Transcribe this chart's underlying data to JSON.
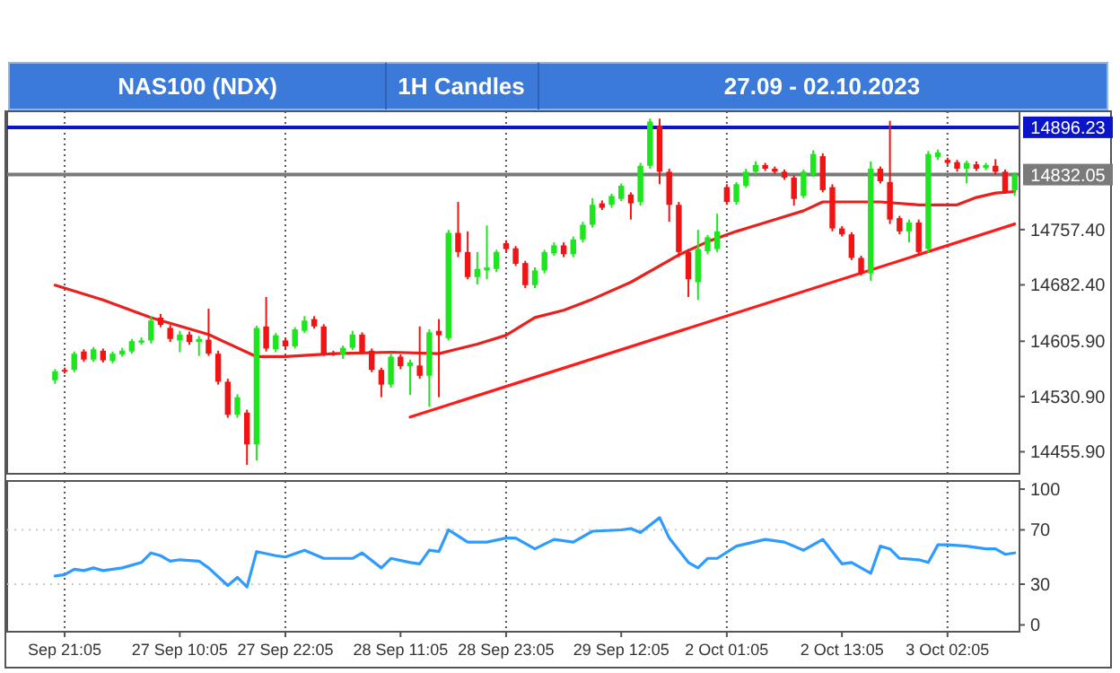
{
  "chart_data": [
    {
      "type": "candlestick",
      "title": "NAS100 (NDX)",
      "subtitle": "1H Candles",
      "annotations": [
        "27.09 - 02.10.2023"
      ],
      "categories": [
        null,
        null,
        null,
        null,
        null,
        null,
        null,
        null,
        null,
        null,
        null,
        null,
        null,
        null,
        null,
        null,
        null,
        null,
        null,
        null,
        null,
        null,
        null,
        null,
        null,
        null,
        null,
        null,
        null,
        null,
        null,
        null,
        null,
        null,
        null,
        null,
        null,
        null,
        null,
        null,
        null,
        null,
        null,
        null,
        null,
        null,
        null,
        null,
        null,
        null,
        null,
        null,
        null,
        null,
        null,
        null,
        null,
        null,
        null,
        null,
        null,
        null,
        null,
        null,
        null,
        null,
        null,
        null,
        null,
        null,
        null,
        null,
        null,
        null,
        null,
        null,
        null,
        null,
        null,
        null,
        null,
        null,
        null,
        null,
        null,
        null,
        null,
        null,
        null,
        null,
        null,
        null,
        null,
        null,
        null,
        null,
        null,
        null,
        null,
        null,
        null
      ],
      "ohlc": [
        [
          14553,
          14568,
          14548,
          14565
        ],
        [
          14567,
          14570,
          14562,
          14565
        ],
        [
          14567,
          14592,
          14564,
          14589
        ],
        [
          14592,
          14595,
          14578,
          14581
        ],
        [
          14581,
          14598,
          14578,
          14595
        ],
        [
          14593,
          14596,
          14577,
          14580
        ],
        [
          14579,
          14592,
          14576,
          14589
        ],
        [
          14588,
          14597,
          14585,
          14593
        ],
        [
          14592,
          14609,
          14589,
          14606
        ],
        [
          14604,
          14611,
          14601,
          14607
        ],
        [
          14607,
          14640,
          14603,
          14634
        ],
        [
          14638,
          14643,
          14625,
          14628
        ],
        [
          14624,
          14628,
          14605,
          14609
        ],
        [
          14607,
          14620,
          14591,
          14615
        ],
        [
          14615,
          14619,
          14601,
          14605
        ],
        [
          14605,
          14613,
          14586,
          14609
        ],
        [
          14608,
          14650,
          14586,
          14589
        ],
        [
          14589,
          14593,
          14547,
          14551
        ],
        [
          14551,
          14555,
          14502,
          14506
        ],
        [
          14506,
          14534,
          14502,
          14530
        ],
        [
          14509,
          14513,
          14438,
          14466
        ],
        [
          14466,
          14627,
          14444,
          14624
        ],
        [
          14626,
          14666,
          14592,
          14596
        ],
        [
          14595,
          14617,
          14591,
          14614
        ],
        [
          14607,
          14611,
          14595,
          14599
        ],
        [
          14599,
          14625,
          14596,
          14622
        ],
        [
          14620,
          14640,
          14617,
          14634
        ],
        [
          14636,
          14640,
          14623,
          14626
        ],
        [
          14626,
          14629,
          14586,
          14589
        ],
        [
          14590,
          14593,
          14586,
          14589
        ],
        [
          14588,
          14600,
          14582,
          14597
        ],
        [
          14597,
          14620,
          14594,
          14615
        ],
        [
          14615,
          14618,
          14588,
          14591
        ],
        [
          14593,
          14596,
          14564,
          14567
        ],
        [
          14567,
          14570,
          14530,
          14547
        ],
        [
          14547,
          14590,
          14543,
          14585
        ],
        [
          14585,
          14588,
          14568,
          14572
        ],
        [
          14572,
          14581,
          14533,
          14577
        ],
        [
          14573,
          14626,
          14555,
          14559
        ],
        [
          14559,
          14622,
          14517,
          14618
        ],
        [
          14620,
          14636,
          14530,
          14614
        ],
        [
          14610,
          14757,
          14607,
          14753
        ],
        [
          14753,
          14795,
          14720,
          14727
        ],
        [
          14727,
          14755,
          14690,
          14693
        ],
        [
          14693,
          14727,
          14683,
          14704
        ],
        [
          14702,
          14763,
          14690,
          14706
        ],
        [
          14704,
          14730,
          14700,
          14727
        ],
        [
          14739,
          14743,
          14727,
          14731
        ],
        [
          14732,
          14735,
          14708,
          14711
        ],
        [
          14712,
          14715,
          14678,
          14682
        ],
        [
          14682,
          14706,
          14678,
          14702
        ],
        [
          14702,
          14730,
          14698,
          14727
        ],
        [
          14725,
          14740,
          14722,
          14736
        ],
        [
          14736,
          14740,
          14720,
          14724
        ],
        [
          14724,
          14748,
          14720,
          14744
        ],
        [
          14744,
          14768,
          14740,
          14764
        ],
        [
          14764,
          14800,
          14760,
          14791
        ],
        [
          14793,
          14797,
          14784,
          14787
        ],
        [
          14791,
          14806,
          14787,
          14803
        ],
        [
          14799,
          14820,
          14796,
          14817
        ],
        [
          14805,
          14808,
          14771,
          14793
        ],
        [
          14795,
          14848,
          14790,
          14844
        ],
        [
          14844,
          14908,
          14840,
          14904
        ],
        [
          14898,
          14908,
          14819,
          14836
        ],
        [
          14836,
          14840,
          14768,
          14791
        ],
        [
          14791,
          14795,
          14720,
          14727
        ],
        [
          14727,
          14731,
          14666,
          14690
        ],
        [
          14686,
          14757,
          14662,
          14731
        ],
        [
          14728,
          14750,
          14724,
          14747
        ],
        [
          14731,
          14779,
          14727,
          14755
        ],
        [
          14815,
          14819,
          14791,
          14795
        ],
        [
          14795,
          14822,
          14791,
          14819
        ],
        [
          14817,
          14840,
          14814,
          14836
        ],
        [
          14836,
          14850,
          14832,
          14845
        ],
        [
          14845,
          14848,
          14837,
          14840
        ],
        [
          14840,
          14843,
          14833,
          14836
        ],
        [
          14836,
          14839,
          14825,
          14828
        ],
        [
          14828,
          14831,
          14790,
          14799
        ],
        [
          14803,
          14839,
          14800,
          14836
        ],
        [
          14832,
          14865,
          14829,
          14860
        ],
        [
          14857,
          14861,
          14808,
          14811
        ],
        [
          14815,
          14819,
          14755,
          14759
        ],
        [
          14759,
          14762,
          14748,
          14751
        ],
        [
          14751,
          14754,
          14716,
          14719
        ],
        [
          14719,
          14722,
          14695,
          14698
        ],
        [
          14698,
          14850,
          14688,
          14840
        ],
        [
          14840,
          14843,
          14820,
          14823
        ],
        [
          14822,
          14905,
          14765,
          14771
        ],
        [
          14773,
          14776,
          14751,
          14755
        ],
        [
          14755,
          14771,
          14740,
          14767
        ],
        [
          14767,
          14771,
          14722,
          14727
        ],
        [
          14731,
          14864,
          14726,
          14860
        ],
        [
          14856,
          14866,
          14852,
          14862
        ],
        [
          14852,
          14855,
          14845,
          14848
        ],
        [
          14849,
          14852,
          14836,
          14840
        ],
        [
          14840,
          14851,
          14820,
          14848
        ],
        [
          14846,
          14850,
          14837,
          14840
        ],
        [
          14841,
          14848,
          14838,
          14845
        ],
        [
          14844,
          14853,
          14832,
          14836
        ],
        [
          14836,
          14839,
          14806,
          14809
        ],
        [
          14811,
          14835,
          14803,
          14832
        ]
      ],
      "colors": [
        "#1ee61e",
        "#f01414",
        "#1ee61e",
        "#f01414",
        "#1ee61e",
        "#f01414",
        "#1ee61e",
        "#1ee61e",
        "#1ee61e",
        "#1ee61e",
        "#1ee61e",
        "#f01414",
        "#f01414",
        "#1ee61e",
        "#f01414",
        "#1ee61e",
        "#f01414",
        "#f01414",
        "#f01414",
        "#1ee61e",
        "#f01414",
        "#1ee61e",
        "#f01414",
        "#1ee61e",
        "#f01414",
        "#1ee61e",
        "#1ee61e",
        "#f01414",
        "#f01414",
        "#f01414",
        "#1ee61e",
        "#1ee61e",
        "#f01414",
        "#f01414",
        "#f01414",
        "#1ee61e",
        "#f01414",
        "#1ee61e",
        "#f01414",
        "#1ee61e",
        "#f01414",
        "#1ee61e",
        "#f01414",
        "#f01414",
        "#1ee61e",
        "#1ee61e",
        "#1ee61e",
        "#f01414",
        "#f01414",
        "#f01414",
        "#1ee61e",
        "#1ee61e",
        "#1ee61e",
        "#f01414",
        "#1ee61e",
        "#1ee61e",
        "#1ee61e",
        "#f01414",
        "#1ee61e",
        "#1ee61e",
        "#f01414",
        "#1ee61e",
        "#1ee61e",
        "#f01414",
        "#f01414",
        "#f01414",
        "#f01414",
        "#1ee61e",
        "#1ee61e",
        "#1ee61e",
        "#f01414",
        "#1ee61e",
        "#1ee61e",
        "#1ee61e",
        "#f01414",
        "#f01414",
        "#f01414",
        "#f01414",
        "#1ee61e",
        "#1ee61e",
        "#f01414",
        "#f01414",
        "#f01414",
        "#f01414",
        "#f01414",
        "#1ee61e",
        "#f01414",
        "#f01414",
        "#f01414",
        "#1ee61e",
        "#f01414",
        "#1ee61e",
        "#1ee61e",
        "#f01414",
        "#f01414",
        "#1ee61e",
        "#f01414",
        "#1ee61e",
        "#f01414",
        "#f01414",
        "#1ee61e"
      ],
      "series": [
        {
          "type": "line",
          "color": "#e8201e",
          "values": [
            14682,
            null,
            null,
            null,
            null,
            14662,
            null,
            null,
            null,
            null,
            14638,
            null,
            null,
            null,
            null,
            null,
            14615,
            null,
            null,
            null,
            null,
            14585,
            null,
            null,
            14585,
            null,
            null,
            null,
            null,
            14589,
            null,
            null,
            null,
            null,
            null,
            14591,
            null,
            null,
            null,
            null,
            14589,
            null,
            null,
            null,
            14602,
            null,
            null,
            14614,
            null,
            null,
            14638,
            null,
            null,
            14648,
            null,
            null,
            14663,
            null,
            null,
            null,
            14686,
            null,
            null,
            null,
            null,
            14723,
            null,
            null,
            14741,
            null,
            null,
            14755,
            null,
            null,
            null,
            14771,
            null,
            null,
            14783,
            null,
            14795,
            null,
            null,
            null,
            null,
            null,
            14795,
            null,
            null,
            null,
            14791,
            null,
            null,
            null,
            14791,
            null,
            14801,
            null,
            14807,
            null,
            14809
          ]
        },
        {
          "type": "line",
          "color": "#ff1a1a",
          "values": [
            null,
            null,
            null,
            null,
            null,
            null,
            null,
            null,
            null,
            null,
            null,
            null,
            null,
            null,
            null,
            null,
            null,
            null,
            null,
            null,
            null,
            null,
            null,
            null,
            null,
            null,
            null,
            null,
            null,
            null,
            null,
            null,
            null,
            null,
            null,
            null,
            null,
            14503,
            null,
            null,
            null,
            null,
            null,
            null,
            null,
            null,
            null,
            null,
            null,
            null,
            null,
            null,
            null,
            null,
            null,
            null,
            null,
            null,
            null,
            null,
            null,
            null,
            null,
            null,
            null,
            null,
            null,
            null,
            null,
            null,
            null,
            null,
            null,
            null,
            null,
            null,
            null,
            null,
            null,
            null,
            null,
            null,
            null,
            null,
            null,
            null,
            null,
            null,
            null,
            null,
            null,
            null,
            null,
            null,
            null,
            null,
            null,
            null,
            null,
            null,
            14765
          ]
        }
      ],
      "ylim": [
        14426,
        14918
      ],
      "yticks": [
        {
          "value": 14455.9,
          "label": "14455.90"
        },
        {
          "value": 14530.9,
          "label": "14530.90"
        },
        {
          "value": 14605.9,
          "label": "14605.90"
        },
        {
          "value": 14682.4,
          "label": "14682.40"
        },
        {
          "value": 14757.4,
          "label": "14757.40"
        }
      ],
      "ref_lines": [
        {
          "axis": "y",
          "value": 14896.23,
          "label": "14896.23",
          "color": "#0a14c8"
        },
        {
          "axis": "y",
          "value": 14832.05,
          "label": "14832.05",
          "color": "#7a7a7a"
        }
      ],
      "grid": "x",
      "tick_labels": "y"
    },
    {
      "type": "line",
      "categories": [
        null,
        "Sep 21:05",
        null,
        null,
        null,
        null,
        null,
        null,
        null,
        null,
        null,
        null,
        null,
        "27 Sep 10:05",
        null,
        null,
        null,
        null,
        null,
        null,
        null,
        null,
        null,
        null,
        "27 Sep 22:05",
        null,
        null,
        null,
        null,
        null,
        null,
        null,
        null,
        null,
        null,
        null,
        "28 Sep 11:05",
        null,
        null,
        null,
        null,
        null,
        null,
        null,
        null,
        null,
        null,
        "28 Sep 23:05",
        null,
        null,
        null,
        null,
        null,
        null,
        null,
        null,
        null,
        null,
        null,
        "29 Sep 12:05",
        null,
        null,
        null,
        null,
        null,
        null,
        null,
        null,
        null,
        null,
        "2 Oct 01:05",
        null,
        null,
        null,
        null,
        null,
        null,
        null,
        null,
        null,
        null,
        null,
        "2 Oct 13:05",
        null,
        null,
        null,
        null,
        null,
        null,
        null,
        null,
        null,
        null,
        "3 Oct 02:05",
        null,
        null,
        null,
        null,
        null,
        null,
        null
      ],
      "series": [
        {
          "color": "#2f9bff",
          "values": [
            36,
            37,
            41,
            40,
            42,
            40,
            null,
            42,
            null,
            46,
            53,
            51,
            47,
            48,
            null,
            47,
            42,
            null,
            29,
            35,
            28,
            54,
            null,
            51,
            50,
            null,
            55,
            null,
            49,
            null,
            null,
            49,
            53,
            null,
            42,
            49,
            null,
            46,
            45,
            55,
            54,
            70,
            null,
            61,
            null,
            61,
            null,
            64,
            64,
            null,
            56,
            null,
            63,
            null,
            61,
            null,
            69,
            null,
            null,
            70,
            71,
            68,
            null,
            79,
            64,
            null,
            46,
            42,
            49,
            49,
            null,
            58,
            null,
            null,
            63,
            null,
            61,
            null,
            55,
            null,
            63,
            null,
            45,
            46,
            null,
            38,
            58,
            56,
            49,
            null,
            48,
            46,
            59,
            59,
            null,
            58,
            null,
            56,
            56,
            52,
            53
          ]
        }
      ],
      "ylim": [
        -5,
        106
      ],
      "yticks": [
        0,
        30,
        70,
        100
      ],
      "ref_lines": [
        {
          "axis": "y",
          "value": 70,
          "color": "#c8c8c8",
          "line_style": "dotted"
        },
        {
          "axis": "y",
          "value": 30,
          "color": "#c8c8c8",
          "line_style": "dotted"
        }
      ],
      "grid": "x"
    }
  ]
}
